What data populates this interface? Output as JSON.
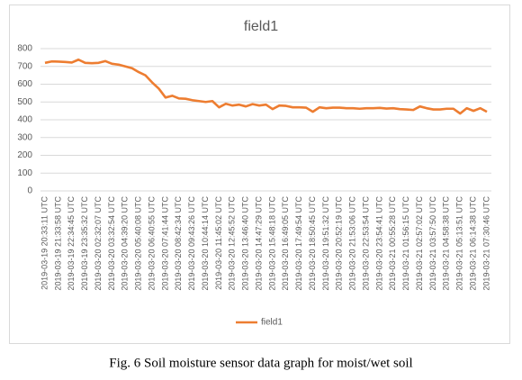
{
  "chart_data": {
    "type": "line",
    "title": "field1",
    "caption": "Fig. 6 Soil moisture sensor data graph for moist/wet soil",
    "categories": [
      "2019-03-19 20:33:11 UTC",
      null,
      "2019-03-19 21:33:58 UTC",
      null,
      "2019-03-19 22:34:45 UTC",
      null,
      "2019-03-19 23:35:32 UTC",
      null,
      "2019-03-20 02:32:07 UTC",
      null,
      "2019-03-20 03:32:54 UTC",
      null,
      "2019-03-20 04:39:20 UTC",
      null,
      "2019-03-20 05:40:08 UTC",
      null,
      "2019-03-20 06:40:55 UTC",
      null,
      "2019-03-20 07:41:44 UTC",
      null,
      "2019-03-20 08:42:34 UTC",
      null,
      "2019-03-20 09:43:26 UTC",
      null,
      "2019-03-20 10:44:14 UTC",
      null,
      "2019-03-20 11:45:02 UTC",
      null,
      "2019-03-20 12:45:52 UTC",
      null,
      "2019-03-20 13:46:40 UTC",
      null,
      "2019-03-20 14:47:29 UTC",
      null,
      "2019-03-20 15:48:18 UTC",
      null,
      "2019-03-20 16:49:05 UTC",
      null,
      "2019-03-20 17:49:54 UTC",
      null,
      "2019-03-20 18:50:45 UTC",
      null,
      "2019-03-20 19:51:32 UTC",
      null,
      "2019-03-20 20:52:19 UTC",
      null,
      "2019-03-20 21:53:06 UTC",
      null,
      "2019-03-20 22:53:54 UTC",
      null,
      "2019-03-20 23:54:41 UTC",
      null,
      "2019-03-21 00:55:28 UTC",
      null,
      "2019-03-21 01:56:15 UTC",
      null,
      "2019-03-21 02:57:02 UTC",
      null,
      "2019-03-21 03:57:50 UTC",
      null,
      "2019-03-21 04:58:38 UTC",
      null,
      "2019-03-21 05:13:51 UTC",
      null,
      "2019-03-21 06:14:38 UTC",
      null,
      "2019-03-21 07:30:46 UTC"
    ],
    "series": [
      {
        "name": "field1",
        "color": "#ed7d31",
        "values": [
          720,
          728,
          727,
          725,
          722,
          738,
          720,
          718,
          720,
          730,
          715,
          710,
          700,
          690,
          668,
          650,
          610,
          575,
          525,
          535,
          520,
          518,
          510,
          505,
          500,
          505,
          470,
          490,
          480,
          485,
          475,
          488,
          480,
          485,
          460,
          480,
          478,
          470,
          470,
          468,
          445,
          470,
          465,
          468,
          468,
          465,
          465,
          462,
          465,
          465,
          467,
          463,
          465,
          460,
          458,
          455,
          475,
          465,
          458,
          458,
          462,
          462,
          435,
          465,
          450,
          465,
          445
        ]
      }
    ],
    "ylim": [
      0,
      800
    ],
    "yticks": [
      0,
      100,
      200,
      300,
      400,
      500,
      600,
      700,
      800
    ],
    "grid": true,
    "legend": "bottom"
  }
}
